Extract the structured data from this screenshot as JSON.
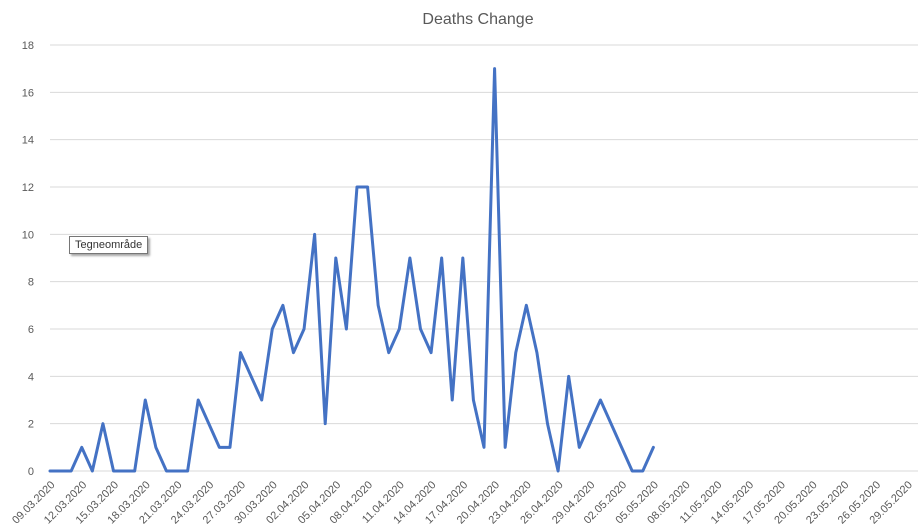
{
  "chart_data": {
    "type": "line",
    "title": "Deaths Change",
    "xlabel": "",
    "ylabel": "",
    "ylim": [
      0,
      18
    ],
    "yticks": [
      0,
      2,
      4,
      6,
      8,
      10,
      12,
      14,
      16,
      18
    ],
    "x_tick_labels": [
      "09.03.2020",
      "12.03.2020",
      "15.03.2020",
      "18.03.2020",
      "21.03.2020",
      "24.03.2020",
      "27.03.2020",
      "30.03.2020",
      "02.04.2020",
      "05.04.2020",
      "08.04.2020",
      "11.04.2020",
      "14.04.2020",
      "17.04.2020",
      "20.04.2020",
      "23.04.2020",
      "26.04.2020",
      "29.04.2020",
      "02.05.2020",
      "05.05.2020",
      "08.05.2020",
      "11.05.2020",
      "14.05.2020",
      "17.05.2020",
      "20.05.2020",
      "23.05.2020",
      "26.05.2020",
      "29.05.2020"
    ],
    "x_start": "09.03.2020",
    "x_end": "30.05.2020",
    "grid": true,
    "series": [
      {
        "color": "#4472c4",
        "values": [
          0,
          0,
          0,
          1,
          0,
          2,
          0,
          0,
          0,
          3,
          1,
          0,
          0,
          0,
          3,
          2,
          1,
          1,
          5,
          4,
          3,
          6,
          7,
          5,
          6,
          10,
          2,
          9,
          6,
          12,
          12,
          7,
          5,
          6,
          9,
          6,
          5,
          9,
          3,
          9,
          3,
          1,
          17,
          1,
          5,
          7,
          5,
          2,
          0,
          4,
          1,
          2,
          3,
          2,
          1,
          0,
          0,
          1
        ]
      }
    ]
  },
  "tooltip": {
    "text": "Tegneområde"
  }
}
